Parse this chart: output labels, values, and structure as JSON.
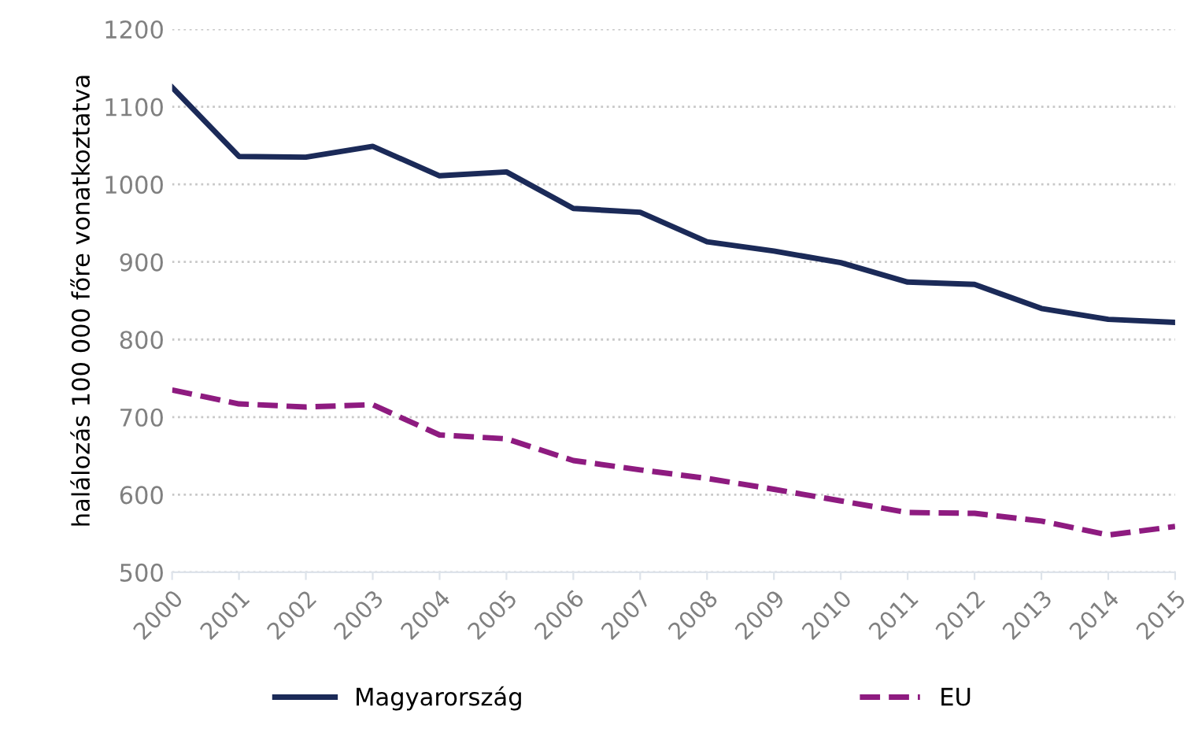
{
  "chart_data": {
    "type": "line",
    "ylabel": "halálozás 100 000 főre vonatkoztatva",
    "categories": [
      "2000",
      "2001",
      "2002",
      "2003",
      "2004",
      "2005",
      "2006",
      "2007",
      "2008",
      "2009",
      "2010",
      "2011",
      "2012",
      "2013",
      "2014",
      "2015"
    ],
    "series": [
      {
        "name": "Magyarország",
        "color": "#1b2a58",
        "line_style": "solid",
        "values": [
          1125,
          1036,
          1035,
          1049,
          1011,
          1016,
          969,
          964,
          926,
          914,
          899,
          874,
          871,
          840,
          826,
          822
        ]
      },
      {
        "name": "EU",
        "color": "#8e1b80",
        "line_style": "dashed",
        "values": [
          735,
          717,
          713,
          716,
          677,
          672,
          644,
          632,
          621,
          607,
          592,
          577,
          576,
          566,
          548,
          559
        ]
      }
    ],
    "ylim": [
      500,
      1200
    ],
    "yticks": [
      500,
      600,
      700,
      800,
      900,
      1000,
      1100,
      1200
    ],
    "grid": "y",
    "legend": "bottom",
    "marker": "none"
  }
}
